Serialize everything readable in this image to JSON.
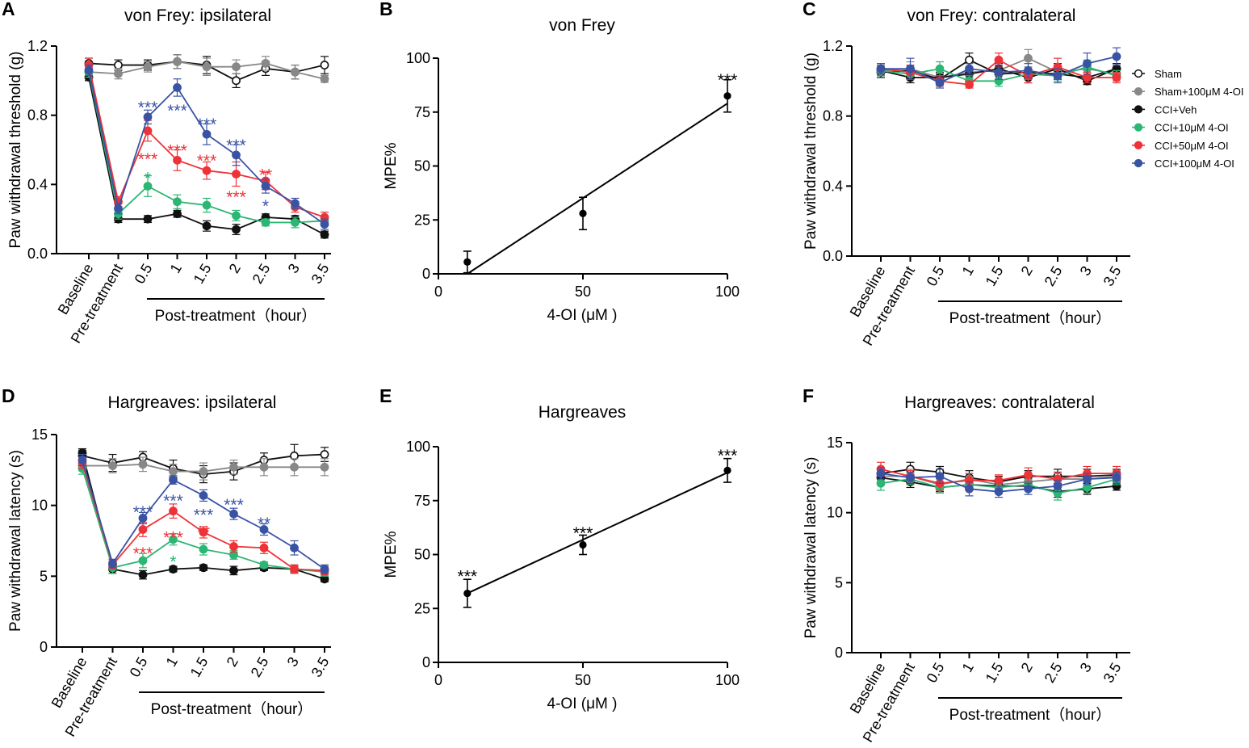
{
  "colors": {
    "Sham": "#111111",
    "Sham+100μM 4-OI": "#888888",
    "CCI+Veh": "#111111",
    "CCI+10μM 4-OI": "#2bb673",
    "CCI+50μM 4-OI": "#ee3237",
    "CCI+100μM 4-OI": "#3953a4"
  },
  "legend": {
    "entries": [
      {
        "name": "Sham",
        "label": "Sham",
        "filled": false
      },
      {
        "name": "Sham+100μM 4-OI",
        "label": "Sham+100μM 4-OI",
        "filled": true
      },
      {
        "name": "CCI+Veh",
        "label": "CCI+Veh",
        "filled": true
      },
      {
        "name": "CCI+10μM 4-OI",
        "label": "CCI+10μM 4-OI",
        "filled": true
      },
      {
        "name": "CCI+50μM 4-OI",
        "label": "CCI+50μM 4-OI",
        "filled": true
      },
      {
        "name": "CCI+100μM 4-OI",
        "label": "CCI+100μM 4-OI",
        "filled": true
      }
    ]
  },
  "chart_data": [
    {
      "panel": "A",
      "type": "line",
      "title": "von Frey: ipsilateral",
      "ylabel": "Paw withdrawal threshold (g)",
      "xlabel": "Post-treatment（hour）",
      "categories": [
        "Baseline",
        "Pre-treatment",
        "0.5",
        "1",
        "1.5",
        "2",
        "2.5",
        "3",
        "3.5"
      ],
      "ylim": [
        0,
        1.2
      ],
      "yticks": [
        "0.0",
        "0.4",
        "0.8",
        "1.2"
      ],
      "series": [
        {
          "name": "Sham",
          "values": [
            1.1,
            1.09,
            1.09,
            1.11,
            1.09,
            1.0,
            1.07,
            1.05,
            1.09
          ],
          "err": [
            0.03,
            0.03,
            0.03,
            0.04,
            0.05,
            0.04,
            0.04,
            0.04,
            0.05
          ]
        },
        {
          "name": "Sham+100μM 4-OI",
          "values": [
            1.05,
            1.04,
            1.08,
            1.11,
            1.08,
            1.08,
            1.1,
            1.05,
            1.01
          ],
          "err": [
            0.03,
            0.03,
            0.03,
            0.04,
            0.05,
            0.04,
            0.04,
            0.04,
            0.02
          ]
        },
        {
          "name": "CCI+Veh",
          "values": [
            1.02,
            0.2,
            0.2,
            0.23,
            0.16,
            0.14,
            0.21,
            0.2,
            0.11
          ],
          "err": [
            0.02,
            0.02,
            0.02,
            0.02,
            0.03,
            0.03,
            0.02,
            0.02,
            0.02
          ]
        },
        {
          "name": "CCI+10μM 4-OI",
          "values": [
            1.05,
            0.23,
            0.39,
            0.3,
            0.28,
            0.22,
            0.18,
            0.18,
            0.19
          ],
          "err": [
            0.03,
            0.03,
            0.06,
            0.04,
            0.04,
            0.03,
            0.02,
            0.03,
            0.02
          ]
        },
        {
          "name": "CCI+50μM 4-OI",
          "values": [
            1.09,
            0.3,
            0.71,
            0.54,
            0.48,
            0.46,
            0.42,
            0.27,
            0.21
          ],
          "err": [
            0.04,
            0.03,
            0.06,
            0.06,
            0.05,
            0.07,
            0.05,
            0.03,
            0.03
          ]
        },
        {
          "name": "CCI+100μM 4-OI",
          "values": [
            1.06,
            0.26,
            0.79,
            0.96,
            0.69,
            0.57,
            0.39,
            0.29,
            0.17
          ],
          "err": [
            0.03,
            0.03,
            0.04,
            0.05,
            0.06,
            0.06,
            0.04,
            0.03,
            0.03
          ]
        }
      ],
      "annotations": [
        {
          "text": "***",
          "x": 2,
          "yv": 0.86,
          "color": "CCI+100μM 4-OI"
        },
        {
          "text": "***",
          "x": 3,
          "yv": 0.84,
          "color": "CCI+100μM 4-OI"
        },
        {
          "text": "***",
          "x": 4,
          "yv": 0.76,
          "color": "CCI+100μM 4-OI"
        },
        {
          "text": "***",
          "x": 5,
          "yv": 0.64,
          "color": "CCI+100μM 4-OI"
        },
        {
          "text": "*",
          "x": 6,
          "yv": 0.29,
          "color": "CCI+100μM 4-OI"
        },
        {
          "text": "***",
          "x": 2,
          "yv": 0.56,
          "color": "CCI+50μM 4-OI"
        },
        {
          "text": "***",
          "x": 3,
          "yv": 0.61,
          "color": "CCI+50μM 4-OI"
        },
        {
          "text": "***",
          "x": 4,
          "yv": 0.55,
          "color": "CCI+50μM 4-OI"
        },
        {
          "text": "***",
          "x": 5,
          "yv": 0.34,
          "color": "CCI+50μM 4-OI"
        },
        {
          "text": "**",
          "x": 6,
          "yv": 0.47,
          "color": "CCI+50μM 4-OI"
        },
        {
          "text": "*",
          "x": 2,
          "yv": 0.45,
          "color": "CCI+10μM 4-OI"
        }
      ]
    },
    {
      "panel": "B",
      "type": "scatter",
      "title": "von Frey",
      "ylabel": "MPE%",
      "xlabel": "4-OI (μM )",
      "x": [
        10,
        50,
        100
      ],
      "y": [
        5.5,
        28,
        82.5
      ],
      "err": [
        5,
        7.5,
        7.5
      ],
      "fit": {
        "x1": 10,
        "y1": 0,
        "x2": 100,
        "y2": 79
      },
      "xlim": [
        0,
        100
      ],
      "ylim": [
        0,
        100
      ],
      "xticks": [
        "0",
        "50",
        "100"
      ],
      "yticks": [
        "0",
        "25",
        "50",
        "75",
        "100"
      ],
      "annotations": [
        {
          "text": "***",
          "x": 100,
          "yv": 91
        }
      ]
    },
    {
      "panel": "C",
      "type": "line",
      "title": "von Frey: contralateral",
      "ylabel": "Paw withdrawal threshold (g)",
      "xlabel": "Post-treatment（hour）",
      "categories": [
        "Baseline",
        "Pre-treatment",
        "0.5",
        "1",
        "1.5",
        "2",
        "2.5",
        "3",
        "3.5"
      ],
      "ylim": [
        0,
        1.2
      ],
      "yticks": [
        "0.0",
        "0.4",
        "0.8",
        "1.2"
      ],
      "series": [
        {
          "name": "Sham",
          "values": [
            1.05,
            1.06,
            1.01,
            1.12,
            1.04,
            1.05,
            1.04,
            1.02,
            1.07
          ],
          "err": [
            0.03,
            0.03,
            0.03,
            0.04,
            0.03,
            0.03,
            0.03,
            0.03,
            0.03
          ]
        },
        {
          "name": "Sham+100μM 4-OI",
          "values": [
            1.06,
            1.07,
            1.02,
            1.05,
            1.06,
            1.13,
            1.05,
            1.07,
            1.04
          ],
          "err": [
            0.03,
            0.04,
            0.03,
            0.03,
            0.03,
            0.05,
            0.03,
            0.04,
            0.03
          ]
        },
        {
          "name": "CCI+Veh",
          "values": [
            1.06,
            1.02,
            1.02,
            1.04,
            1.07,
            1.02,
            1.07,
            1.0,
            1.07
          ],
          "err": [
            0.03,
            0.03,
            0.03,
            0.03,
            0.03,
            0.03,
            0.03,
            0.02,
            0.03
          ]
        },
        {
          "name": "CCI+10μM 4-OI",
          "values": [
            1.06,
            1.04,
            1.07,
            1.0,
            1.0,
            1.04,
            1.03,
            1.08,
            1.03
          ],
          "err": [
            0.03,
            0.03,
            0.04,
            0.03,
            0.03,
            0.03,
            0.03,
            0.04,
            0.03
          ]
        },
        {
          "name": "CCI+50μM 4-OI",
          "values": [
            1.07,
            1.05,
            1.0,
            0.98,
            1.12,
            1.03,
            1.08,
            1.02,
            1.02
          ],
          "err": [
            0.03,
            0.04,
            0.03,
            0.02,
            0.04,
            0.04,
            0.05,
            0.03,
            0.03
          ]
        },
        {
          "name": "CCI+100μM 4-OI",
          "values": [
            1.07,
            1.07,
            0.99,
            1.07,
            1.05,
            1.06,
            1.03,
            1.1,
            1.14
          ],
          "err": [
            0.03,
            0.06,
            0.03,
            0.03,
            0.04,
            0.04,
            0.04,
            0.06,
            0.05
          ]
        }
      ]
    },
    {
      "panel": "D",
      "type": "line",
      "title": "Hargreaves: ipsilateral",
      "ylabel": "Paw withdrawal latency (s)",
      "xlabel": "Post-treatment（hour）",
      "categories": [
        "Baseline",
        "Pre-treatment",
        "0.5",
        "1",
        "1.5",
        "2",
        "2.5",
        "3",
        "3.5"
      ],
      "ylim": [
        0,
        15
      ],
      "yticks": [
        "0",
        "5",
        "10",
        "15"
      ],
      "series": [
        {
          "name": "Sham",
          "values": [
            13.5,
            13.0,
            13.4,
            12.6,
            12.2,
            12.4,
            13.2,
            13.5,
            13.6
          ],
          "err": [
            0.4,
            0.6,
            0.4,
            0.6,
            0.6,
            0.6,
            0.5,
            0.8,
            0.5
          ]
        },
        {
          "name": "Sham+100μM 4-OI",
          "values": [
            12.8,
            12.8,
            12.9,
            12.4,
            12.4,
            12.7,
            12.7,
            12.7,
            12.7
          ],
          "err": [
            0.3,
            0.5,
            0.5,
            0.5,
            0.6,
            0.5,
            0.6,
            0.6,
            0.6
          ]
        },
        {
          "name": "CCI+Veh",
          "values": [
            13.7,
            5.5,
            5.1,
            5.5,
            5.6,
            5.4,
            5.6,
            5.5,
            4.8
          ],
          "err": [
            0.3,
            0.3,
            0.3,
            0.2,
            0.2,
            0.3,
            0.2,
            0.2,
            0.2
          ]
        },
        {
          "name": "CCI+10μM 4-OI",
          "values": [
            12.6,
            5.6,
            6.1,
            7.6,
            6.9,
            6.5,
            5.8,
            5.5,
            5.3
          ],
          "err": [
            0.4,
            0.4,
            0.5,
            0.4,
            0.4,
            0.3,
            0.2,
            0.3,
            0.3
          ]
        },
        {
          "name": "CCI+50μM 4-OI",
          "values": [
            13.0,
            5.8,
            8.3,
            9.6,
            8.1,
            7.1,
            7.0,
            5.5,
            5.4
          ],
          "err": [
            0.4,
            0.3,
            0.5,
            0.5,
            0.4,
            0.4,
            0.4,
            0.3,
            0.3
          ]
        },
        {
          "name": "CCI+100μM 4-OI",
          "values": [
            13.2,
            5.9,
            9.1,
            11.8,
            10.7,
            9.4,
            8.3,
            7.0,
            5.5
          ],
          "err": [
            0.4,
            0.3,
            0.4,
            0.3,
            0.4,
            0.4,
            0.4,
            0.5,
            0.3
          ]
        }
      ],
      "annotations": [
        {
          "text": "***",
          "x": 2,
          "yv": 9.7,
          "color": "CCI+100μM 4-OI"
        },
        {
          "text": "***",
          "x": 3,
          "yv": 10.5,
          "color": "CCI+100μM 4-OI"
        },
        {
          "text": "***",
          "x": 4,
          "yv": 9.5,
          "color": "CCI+100μM 4-OI"
        },
        {
          "text": "***",
          "x": 5,
          "yv": 10.2,
          "color": "CCI+100μM 4-OI"
        },
        {
          "text": "**",
          "x": 6,
          "yv": 8.9,
          "color": "CCI+100μM 4-OI"
        },
        {
          "text": "***",
          "x": 3,
          "yv": 7.9,
          "color": "CCI+50μM 4-OI"
        },
        {
          "text": "**",
          "x": 4,
          "yv": 8.3,
          "color": "CCI+50μM 4-OI"
        },
        {
          "text": "***",
          "x": 2,
          "yv": 6.8,
          "color": "CCI+50μM 4-OI"
        },
        {
          "text": "*",
          "x": 3,
          "yv": 6.2,
          "color": "CCI+10μM 4-OI"
        }
      ]
    },
    {
      "panel": "E",
      "type": "scatter",
      "title": "Hargreaves",
      "ylabel": "MPE%",
      "xlabel": "4-OI (μM )",
      "x": [
        10,
        50,
        100
      ],
      "y": [
        32,
        54.5,
        89
      ],
      "err": [
        6.5,
        4.5,
        5.5
      ],
      "fit": {
        "x1": 10,
        "y1": 32,
        "x2": 100,
        "y2": 88
      },
      "xlim": [
        0,
        100
      ],
      "ylim": [
        0,
        100
      ],
      "xticks": [
        "0",
        "50",
        "100"
      ],
      "yticks": [
        "0",
        "25",
        "50",
        "75",
        "100"
      ],
      "annotations": [
        {
          "text": "***",
          "x": 10,
          "yv": 41
        },
        {
          "text": "***",
          "x": 50,
          "yv": 61
        },
        {
          "text": "***",
          "x": 100,
          "yv": 97
        }
      ]
    },
    {
      "panel": "F",
      "type": "line",
      "title": "Hargreaves: contralateral",
      "ylabel": "Paw withdrawal latency (s)",
      "xlabel": "Post-treatment（hour）",
      "categories": [
        "Baseline",
        "Pre-treatment",
        "0.5",
        "1",
        "1.5",
        "2",
        "2.5",
        "3",
        "3.5"
      ],
      "ylim": [
        0,
        15
      ],
      "yticks": [
        "0",
        "5",
        "10",
        "15"
      ],
      "series": [
        {
          "name": "Sham",
          "values": [
            12.8,
            13.1,
            12.9,
            12.5,
            12.2,
            12.6,
            12.6,
            12.6,
            12.7
          ],
          "err": [
            0.3,
            0.5,
            0.4,
            0.5,
            0.4,
            0.4,
            0.5,
            0.5,
            0.4
          ]
        },
        {
          "name": "Sham+100μM 4-OI",
          "values": [
            12.6,
            12.6,
            12.0,
            12.4,
            12.0,
            12.2,
            12.4,
            12.4,
            12.6
          ],
          "err": [
            0.4,
            0.5,
            0.4,
            0.4,
            0.4,
            0.4,
            0.4,
            0.4,
            0.4
          ]
        },
        {
          "name": "CCI+Veh",
          "values": [
            12.5,
            12.2,
            11.8,
            12.0,
            11.9,
            11.9,
            11.5,
            11.7,
            11.9
          ],
          "err": [
            0.3,
            0.4,
            0.3,
            0.4,
            0.3,
            0.3,
            0.4,
            0.4,
            0.3
          ]
        },
        {
          "name": "CCI+10μM 4-OI",
          "values": [
            12.1,
            12.4,
            11.8,
            12.0,
            11.8,
            12.0,
            11.4,
            11.8,
            12.4
          ],
          "err": [
            0.5,
            0.4,
            0.4,
            0.3,
            0.4,
            0.4,
            0.5,
            0.4,
            0.4
          ]
        },
        {
          "name": "CCI+50μM 4-OI",
          "values": [
            13.1,
            12.6,
            12.1,
            12.3,
            12.3,
            12.7,
            12.4,
            12.8,
            12.8
          ],
          "err": [
            0.5,
            0.4,
            0.5,
            0.5,
            0.4,
            0.5,
            0.5,
            0.5,
            0.5
          ]
        },
        {
          "name": "CCI+100μM 4-OI",
          "values": [
            12.8,
            12.5,
            12.6,
            11.7,
            11.5,
            11.7,
            11.9,
            12.4,
            12.5
          ],
          "err": [
            0.4,
            0.4,
            0.5,
            0.5,
            0.4,
            0.4,
            0.4,
            0.4,
            0.4
          ]
        }
      ]
    }
  ]
}
